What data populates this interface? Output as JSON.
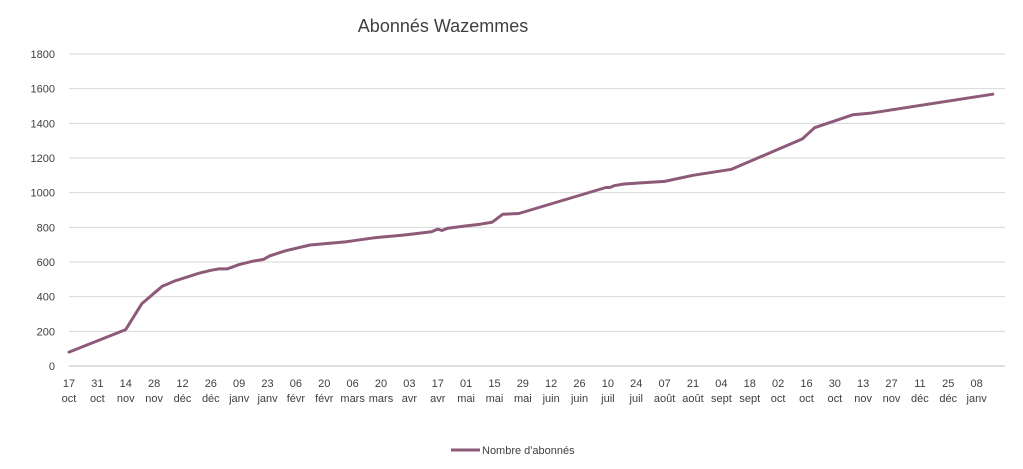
{
  "chart_data": {
    "type": "line",
    "title": "Abonnés Wazemmes",
    "xlabel": "",
    "ylabel": "",
    "ylim": [
      0,
      1800
    ],
    "yticks": [
      "0",
      "200",
      "400",
      "600",
      "800",
      "1000",
      "1200",
      "1400",
      "1600",
      "1800"
    ],
    "grid": true,
    "legend_position": "bottom",
    "line_color": "#8E5A79",
    "x_tick_labels": [
      {
        "day": "17",
        "month": "oct"
      },
      {
        "day": "31",
        "month": "oct"
      },
      {
        "day": "14",
        "month": "nov"
      },
      {
        "day": "28",
        "month": "nov"
      },
      {
        "day": "12",
        "month": "déc"
      },
      {
        "day": "26",
        "month": "déc"
      },
      {
        "day": "09",
        "month": "janv"
      },
      {
        "day": "23",
        "month": "janv"
      },
      {
        "day": "06",
        "month": "févr"
      },
      {
        "day": "20",
        "month": "févr"
      },
      {
        "day": "06",
        "month": "mars"
      },
      {
        "day": "20",
        "month": "mars"
      },
      {
        "day": "03",
        "month": "avr"
      },
      {
        "day": "17",
        "month": "avr"
      },
      {
        "day": "01",
        "month": "mai"
      },
      {
        "day": "15",
        "month": "mai"
      },
      {
        "day": "29",
        "month": "mai"
      },
      {
        "day": "12",
        "month": "juin"
      },
      {
        "day": "26",
        "month": "juin"
      },
      {
        "day": "10",
        "month": "juil"
      },
      {
        "day": "24",
        "month": "juil"
      },
      {
        "day": "07",
        "month": "août"
      },
      {
        "day": "21",
        "month": "août"
      },
      {
        "day": "04",
        "month": "sept"
      },
      {
        "day": "18",
        "month": "sept"
      },
      {
        "day": "02",
        "month": "oct"
      },
      {
        "day": "16",
        "month": "oct"
      },
      {
        "day": "30",
        "month": "oct"
      },
      {
        "day": "13",
        "month": "nov"
      },
      {
        "day": "27",
        "month": "nov"
      },
      {
        "day": "11",
        "month": "déc"
      },
      {
        "day": "25",
        "month": "déc"
      },
      {
        "day": "08",
        "month": "janv"
      }
    ],
    "series": [
      {
        "name": "Nombre d'abonnés",
        "points": [
          {
            "x": "17 oct",
            "y": 80
          },
          {
            "x": "14 nov",
            "y": 210
          },
          {
            "x": "22 nov",
            "y": 360
          },
          {
            "x": "24 nov",
            "y": 380
          },
          {
            "x": "26 nov",
            "y": 400
          },
          {
            "x": "28 nov",
            "y": 420
          },
          {
            "x": "2 déc",
            "y": 460
          },
          {
            "x": "5 déc",
            "y": 475
          },
          {
            "x": "8 déc",
            "y": 490
          },
          {
            "x": "12 déc",
            "y": 505
          },
          {
            "x": "20 déc",
            "y": 535
          },
          {
            "x": "26 déc",
            "y": 552
          },
          {
            "x": "30 déc",
            "y": 560
          },
          {
            "x": "3 janv",
            "y": 560
          },
          {
            "x": "9 janv",
            "y": 585
          },
          {
            "x": "16 janv",
            "y": 605
          },
          {
            "x": "21 janv",
            "y": 615
          },
          {
            "x": "24 janv",
            "y": 635
          },
          {
            "x": "1 févr",
            "y": 665
          },
          {
            "x": "13 févr",
            "y": 698
          },
          {
            "x": "3 mars",
            "y": 717
          },
          {
            "x": "17 mars",
            "y": 740
          },
          {
            "x": "31 mars",
            "y": 755
          },
          {
            "x": "14 avr",
            "y": 775
          },
          {
            "x": "17 avr",
            "y": 790
          },
          {
            "x": "19 avr",
            "y": 782
          },
          {
            "x": "22 avr",
            "y": 795
          },
          {
            "x": "1 mai",
            "y": 808
          },
          {
            "x": "8 mai",
            "y": 818
          },
          {
            "x": "14 mai",
            "y": 830
          },
          {
            "x": "19 mai",
            "y": 875
          },
          {
            "x": "27 mai",
            "y": 880
          },
          {
            "x": "9 juil",
            "y": 1030
          },
          {
            "x": "11 juil",
            "y": 1030
          },
          {
            "x": "13 juil",
            "y": 1040
          },
          {
            "x": "18 juil",
            "y": 1050
          },
          {
            "x": "7 août",
            "y": 1065
          },
          {
            "x": "21 août",
            "y": 1100
          },
          {
            "x": "9 sept",
            "y": 1135
          },
          {
            "x": "14 oct",
            "y": 1310
          },
          {
            "x": "20 oct",
            "y": 1375
          },
          {
            "x": "8 nov",
            "y": 1450
          },
          {
            "x": "16 nov",
            "y": 1458
          },
          {
            "x": "16 janv",
            "y": 1568
          }
        ]
      }
    ]
  }
}
